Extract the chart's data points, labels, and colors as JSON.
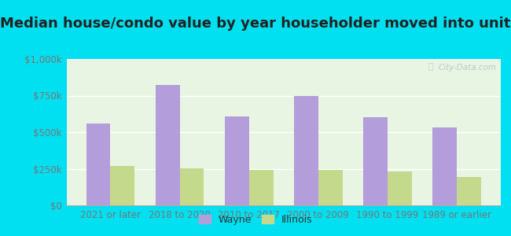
{
  "title": "Median house/condo value by year householder moved into unit",
  "categories": [
    "2021 or later",
    "2018 to 2020",
    "2010 to 2017",
    "2000 to 2009",
    "1990 to 1999",
    "1989 or earlier"
  ],
  "wayne_values": [
    560000,
    820000,
    610000,
    750000,
    600000,
    530000
  ],
  "illinois_values": [
    270000,
    255000,
    240000,
    240000,
    230000,
    195000
  ],
  "wayne_color": "#b39ddb",
  "illinois_color": "#c5d98d",
  "background_color": "#00e0f0",
  "plot_bg": "#e8f5e3",
  "ylabel_ticks": [
    "$0",
    "$250k",
    "$500k",
    "$750k",
    "$1,000k"
  ],
  "ytick_values": [
    0,
    250000,
    500000,
    750000,
    1000000
  ],
  "ylim": [
    0,
    1000000
  ],
  "watermark": "City-Data.com",
  "legend_wayne": "Wayne",
  "legend_illinois": "Illinois",
  "title_fontsize": 13,
  "tick_fontsize": 8.5,
  "legend_fontsize": 9
}
